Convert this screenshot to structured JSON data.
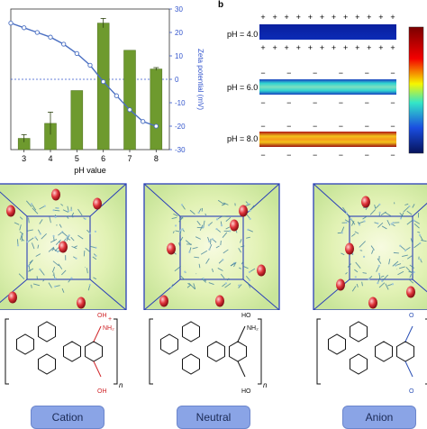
{
  "panel_b_label": "b",
  "chart_data": {
    "type": "bar",
    "categories": [
      "3",
      "4",
      "5",
      "6",
      "7",
      "8"
    ],
    "series": [
      {
        "values": [
          1.2,
          2.8,
          6.3,
          13.5,
          10.6,
          8.6
        ],
        "errors": [
          0.4,
          1.2,
          0.0,
          0.5,
          0.0,
          0.15
        ],
        "color": "#6e9a2e"
      }
    ],
    "line_series": {
      "x": [
        2.5,
        3,
        3.5,
        4,
        4.5,
        5,
        5.5,
        6,
        6.5,
        7,
        7.5,
        8
      ],
      "y": [
        24,
        22,
        20,
        18,
        15,
        11,
        6,
        -1,
        -7,
        -13,
        -18,
        -20
      ],
      "color": "#4a6fc2"
    },
    "xlabel": "pH value",
    "y2label": "Zeta potential (mV)",
    "y2_ticks": [
      "30",
      "20",
      "10",
      "0",
      "-10",
      "-20",
      "-30"
    ],
    "y2lim": [
      -30,
      30
    ],
    "ylim": [
      0,
      15
    ],
    "zero_reference_line": 0
  },
  "ph_panels": [
    {
      "label": "pH = 4.0",
      "top_sign": "+",
      "bottom_sign": "+"
    },
    {
      "label": "pH = 6.0",
      "top_sign": "−",
      "bottom_sign": "−"
    },
    {
      "label": "pH = 8.0",
      "top_sign": "−",
      "bottom_sign": "−"
    }
  ],
  "species": [
    {
      "caption": "Cation",
      "amide_label": "NH₂",
      "oxime_label": "OH",
      "plus_sign": "+",
      "accent": "#d0262a"
    },
    {
      "caption": "Neutral",
      "amide_label": "NH₂",
      "oxime_label": "HO",
      "accent": "#111111"
    },
    {
      "caption": "Anion",
      "oxime_label": "O",
      "accent": "#2a4fb5"
    }
  ],
  "repeat_subscript": "n"
}
